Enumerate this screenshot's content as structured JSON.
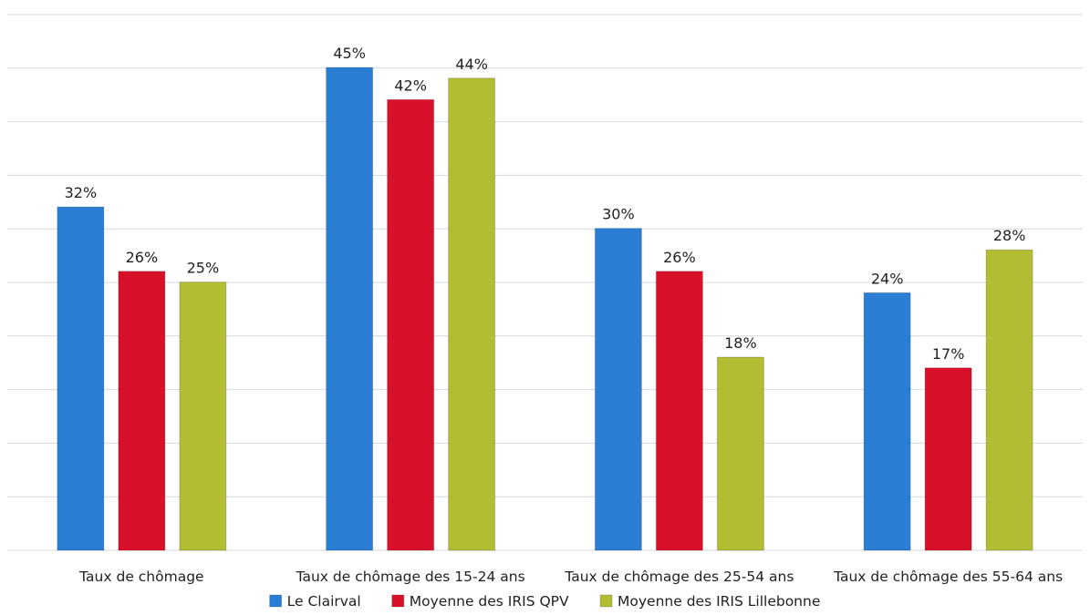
{
  "chart_data": {
    "type": "bar",
    "title": "",
    "xlabel": "",
    "ylabel": "",
    "categories": [
      "Taux de chômage",
      "Taux de chômage des 15-24 ans",
      "Taux de chômage des 25-54 ans",
      "Taux de chômage des 55-64 ans"
    ],
    "series": [
      {
        "name": "Le Clairval",
        "values": [
          32,
          45,
          30,
          24
        ],
        "labels": [
          "32%",
          "45%",
          "30%",
          "24%"
        ],
        "color": "#2a7fd4"
      },
      {
        "name": "Moyenne des IRIS QPV",
        "values": [
          26,
          42,
          26,
          17
        ],
        "labels": [
          "26%",
          "42%",
          "26%",
          "17%"
        ],
        "color": "#d9102a"
      },
      {
        "name": "Moyenne des IRIS Lillebonne",
        "values": [
          25,
          44,
          18,
          28
        ],
        "labels": [
          "25%",
          "44%",
          "18%",
          "28%"
        ],
        "color": "#b3bd34"
      }
    ],
    "ylim": [
      0,
      50
    ],
    "grid": true,
    "legend": "bottom"
  }
}
